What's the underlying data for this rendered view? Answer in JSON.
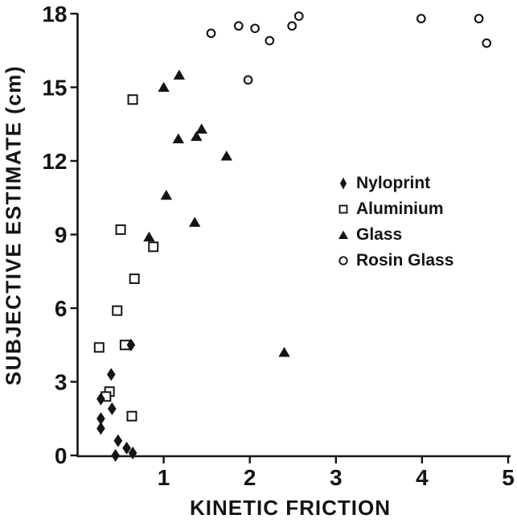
{
  "figure": {
    "ink_color": "#141414",
    "background_color": "#ffffff"
  },
  "chart_data": {
    "type": "scatter",
    "title": "",
    "xlabel": "KINETIC FRICTION",
    "ylabel": "SUBJECTIVE ESTIMATE (cm)",
    "xlim": [
      0,
      5
    ],
    "ylim": [
      0,
      18
    ],
    "x_ticks": [
      1,
      2,
      3,
      4,
      5
    ],
    "y_ticks": [
      0,
      3,
      6,
      9,
      12,
      15,
      18
    ],
    "grid": false,
    "legend_position": "middle-right",
    "series": [
      {
        "name": "Nyloprint",
        "marker": "filled-diamond",
        "points": [
          [
            0.62,
            4.5
          ],
          [
            0.39,
            3.3
          ],
          [
            0.27,
            2.3
          ],
          [
            0.4,
            1.9
          ],
          [
            0.27,
            1.5
          ],
          [
            0.27,
            1.1
          ],
          [
            0.47,
            0.6
          ],
          [
            0.57,
            0.3
          ],
          [
            0.64,
            0.1
          ],
          [
            0.44,
            0.0
          ]
        ]
      },
      {
        "name": "Aluminium",
        "marker": "open-square",
        "points": [
          [
            0.64,
            14.5
          ],
          [
            0.5,
            9.2
          ],
          [
            0.88,
            8.5
          ],
          [
            0.66,
            7.2
          ],
          [
            0.46,
            5.9
          ],
          [
            0.25,
            4.4
          ],
          [
            0.55,
            4.5
          ],
          [
            0.37,
            2.6
          ],
          [
            0.33,
            2.4
          ],
          [
            0.63,
            1.6
          ]
        ]
      },
      {
        "name": "Glass",
        "marker": "filled-triangle",
        "points": [
          [
            1.0,
            15.0
          ],
          [
            1.18,
            15.5
          ],
          [
            1.44,
            13.3
          ],
          [
            1.38,
            13.0
          ],
          [
            1.17,
            12.9
          ],
          [
            1.73,
            12.2
          ],
          [
            1.03,
            10.6
          ],
          [
            1.36,
            9.5
          ],
          [
            0.83,
            8.9
          ],
          [
            2.4,
            4.2
          ]
        ]
      },
      {
        "name": "Rosin Glass",
        "marker": "open-circle",
        "points": [
          [
            1.55,
            17.2
          ],
          [
            1.87,
            17.5
          ],
          [
            2.06,
            17.4
          ],
          [
            2.23,
            16.9
          ],
          [
            2.49,
            17.5
          ],
          [
            2.57,
            17.9
          ],
          [
            1.98,
            15.3
          ],
          [
            3.99,
            17.8
          ],
          [
            4.66,
            17.8
          ],
          [
            4.75,
            16.8
          ]
        ]
      }
    ]
  }
}
